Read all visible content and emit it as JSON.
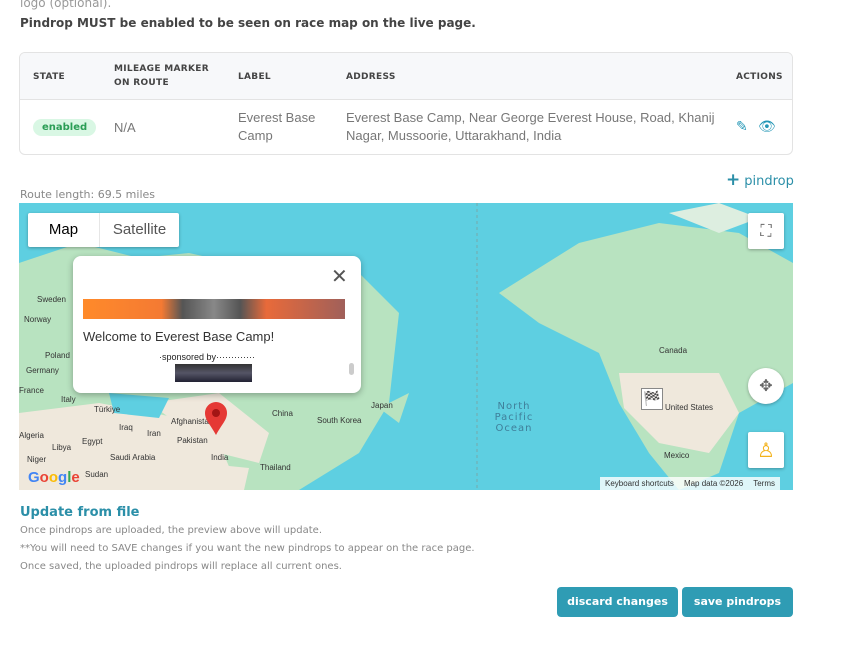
{
  "intro": {
    "line1": "logo (optional).",
    "line2": "Pindrop MUST be enabled to be seen on race map on the live page."
  },
  "table": {
    "headers": [
      "STATE",
      "MILEAGE MARKER ON ROUTE",
      "LABEL",
      "ADDRESS",
      "ACTIONS"
    ],
    "rows": [
      {
        "state": "enabled",
        "mileage": "N/A",
        "label": "Everest Base Camp",
        "address": "Everest Base Camp, Near George Everest House, Road, Khanij Nagar, Mussoorie, Uttarakhand, India",
        "actions": [
          "edit-icon",
          "eye-icon"
        ]
      }
    ]
  },
  "add_pindrop": {
    "icon": "plus-icon",
    "label": "pindrop"
  },
  "route_length": "Route length: 69.5 miles",
  "map": {
    "type_buttons": [
      "Map",
      "Satellite"
    ],
    "selected_type": "Map",
    "popup": {
      "title": "Welcome to Everest Base Camp!",
      "sponsor": "·sponsored by·············"
    },
    "labels": [
      "Sweden",
      "Norway",
      "Poland",
      "Germany",
      "France",
      "Italy",
      "Türkiye",
      "Iraq",
      "Iran",
      "Afghanistan",
      "Pakistan",
      "India",
      "China",
      "South Korea",
      "Japan",
      "Thailand",
      "Libya",
      "Egypt",
      "Saudi Arabia",
      "Sudan",
      "Niger",
      "Algeria",
      "Canada",
      "United States",
      "Mexico"
    ],
    "ocean": "North Pacific Ocean",
    "footer": [
      "Keyboard shortcuts",
      "Map data ©2026",
      "Terms"
    ],
    "logo": "Google"
  },
  "upload": {
    "title": "Update from file",
    "notes": [
      "Once pindrops are uploaded, the preview above will update.",
      "**You will need to SAVE changes if you want the new pindrops to appear on the race page.",
      "Once saved, the uploaded pindrops will replace all current ones."
    ]
  },
  "buttons": {
    "discard": "discard changes",
    "save": "save pindrops"
  },
  "colors": {
    "accent": "#2f9cb4",
    "badge_bg": "#d9f7e4",
    "badge_text": "#2a9d55",
    "ocean": "#5ecfe1",
    "pin": "#e53935"
  }
}
